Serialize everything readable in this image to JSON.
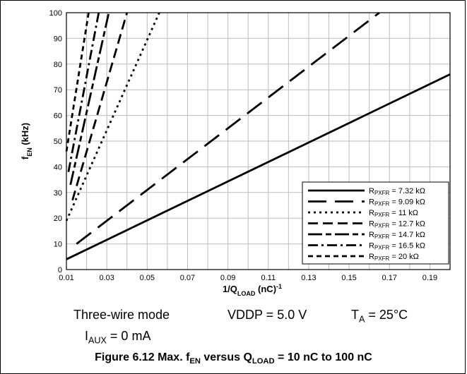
{
  "chart_data": {
    "type": "line",
    "xlabel_main": "1/Q",
    "xlabel_sub": "LOAD",
    "xlabel_unit": " (nC)",
    "xlabel_sup": "-1",
    "ylabel_main": "f",
    "ylabel_sub": "EN",
    "ylabel_unit": " (kHz)",
    "xlim": [
      0.01,
      0.2
    ],
    "ylim": [
      0,
      100
    ],
    "x_ticks": [
      "0.01",
      "0.03",
      "0.05",
      "0.07",
      "0.09",
      "0.11",
      "0.13",
      "0.15",
      "0.17",
      "0.19"
    ],
    "y_ticks": [
      "0",
      "10",
      "20",
      "30",
      "40",
      "50",
      "60",
      "70",
      "80",
      "90",
      "100"
    ],
    "grid": true,
    "legend_position": "bottom-right",
    "series": [
      {
        "name": "R_PXFR = 7.32 kΩ",
        "label_main": "R",
        "label_sub": "PXFR",
        "label_rest": " = 7.32 kΩ",
        "dash": "solid",
        "x": [
          0.01,
          0.2
        ],
        "y": [
          4,
          76
        ]
      },
      {
        "name": "R_PXFR = 9.09 kΩ",
        "label_main": "R",
        "label_sub": "PXFR",
        "label_rest": " = 9.09 kΩ",
        "dash": "long",
        "x": [
          0.015,
          0.165
        ],
        "y": [
          10,
          100
        ]
      },
      {
        "name": "R_PXFR = 11 kΩ",
        "label_main": "R",
        "label_sub": "PXFR",
        "label_rest": " = 11 kΩ",
        "dash": "dot",
        "x": [
          0.01,
          0.056
        ],
        "y": [
          19,
          100
        ]
      },
      {
        "name": "R_PXFR = 12.7 kΩ",
        "label_main": "R",
        "label_sub": "PXFR",
        "label_rest": " = 12.7 kΩ",
        "dash": "medium",
        "x": [
          0.013,
          0.04
        ],
        "y": [
          27,
          100
        ]
      },
      {
        "name": "R_PXFR = 14.7 kΩ",
        "label_main": "R",
        "label_sub": "PXFR",
        "label_rest": " = 14.7 kΩ",
        "dash": "longshort",
        "x": [
          0.012,
          0.031
        ],
        "y": [
          33,
          100
        ]
      },
      {
        "name": "R_PXFR = 16.5 kΩ",
        "label_main": "R",
        "label_sub": "PXFR",
        "label_rest": " = 16.5 kΩ",
        "dash": "dashdot",
        "x": [
          0.011,
          0.026
        ],
        "y": [
          38,
          100
        ]
      },
      {
        "name": "R_PXFR = 20 kΩ",
        "label_main": "R",
        "label_sub": "PXFR",
        "label_rest": " = 20 kΩ",
        "dash": "short",
        "x": [
          0.01,
          0.021
        ],
        "y": [
          46,
          100
        ]
      }
    ]
  },
  "conditions": {
    "mode": "Three-wire mode",
    "vddp": "VDDP = 5.0 V",
    "ta_main": "T",
    "ta_sub": "A",
    "ta_rest": " = 25°C",
    "iaux_main": "I",
    "iaux_sub": "AUX",
    "iaux_rest": " = 0 mA"
  },
  "caption": {
    "text": "Figure 6.12  Max. f",
    "sub": "EN",
    "rest": " versus Q",
    "sub2": "LOAD",
    "rest2": " = 10 nC to 100 nC"
  }
}
